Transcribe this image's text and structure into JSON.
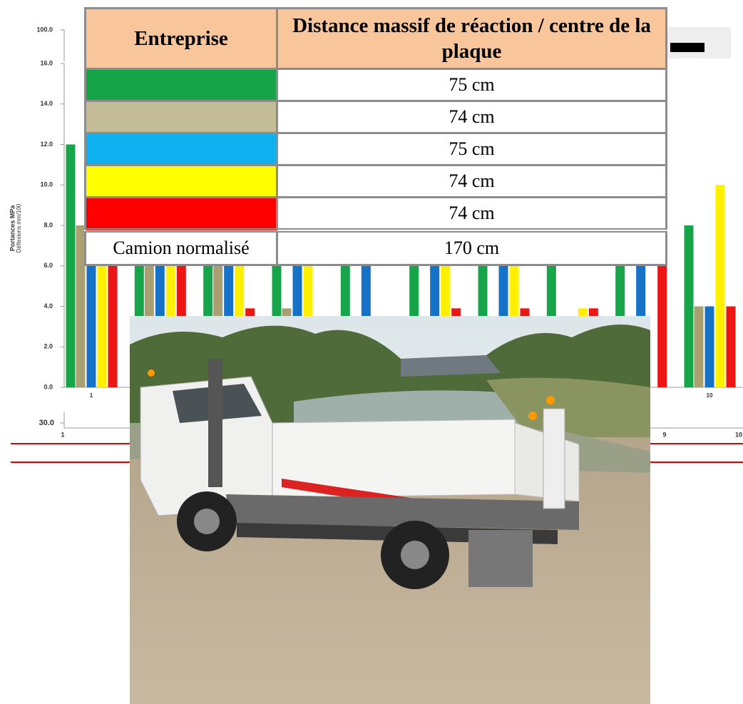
{
  "chart": {
    "type": "bar",
    "y_label": "Portances MPa",
    "y_sublabel": "Déflexions mm/100",
    "top_tick": {
      "value": 100,
      "label": "100.0"
    },
    "ylim": [
      0,
      16
    ],
    "yticks": [
      {
        "value": 0,
        "label": "0.0"
      },
      {
        "value": 2,
        "label": "2.0"
      },
      {
        "value": 4,
        "label": "4.0"
      },
      {
        "value": 6,
        "label": "6.0"
      },
      {
        "value": 8,
        "label": "8.0"
      },
      {
        "value": 10,
        "label": "10.0"
      },
      {
        "value": 12,
        "label": "12.0"
      },
      {
        "value": 14,
        "label": "14.0"
      },
      {
        "value": 16,
        "label": "16.0"
      }
    ],
    "categories": [
      "1",
      null,
      null,
      null,
      null,
      null,
      null,
      null,
      null,
      "10"
    ],
    "series": [
      {
        "color": "#17a54a",
        "values": [
          12,
          6.5,
          6.5,
          6.5,
          6.5,
          6.5,
          6.5,
          6.5,
          6.5,
          8
        ]
      },
      {
        "color": "#a99f70",
        "values": [
          8,
          6.5,
          6.5,
          3.9,
          null,
          null,
          null,
          null,
          null,
          4
        ]
      },
      {
        "color": "#1672c9",
        "values": [
          6.5,
          6.5,
          6.5,
          6.5,
          6.5,
          6.5,
          6.5,
          null,
          6.5,
          4
        ]
      },
      {
        "color": "#fff000",
        "values": [
          6.5,
          6.5,
          6.5,
          6.5,
          null,
          6.5,
          6.5,
          3.9,
          null,
          10
        ]
      },
      {
        "color": "#ee1515",
        "values": [
          6.5,
          6.5,
          3.9,
          null,
          null,
          3.9,
          3.9,
          3.9,
          6.5,
          4
        ]
      }
    ],
    "lower_axis": {
      "ytick": {
        "value": 30,
        "label": "30.0"
      },
      "xticks": [
        "1",
        "9",
        "10"
      ]
    }
  },
  "table": {
    "header": [
      "Entreprise",
      "Distance massif de réaction / centre de la plaque"
    ],
    "rows": [
      {
        "color": "#17a54a",
        "value": "75 cm"
      },
      {
        "color": "#c4bd97",
        "value": "74 cm"
      },
      {
        "color": "#0fb0f0",
        "value": "75 cm"
      },
      {
        "color": "#ffff00",
        "value": "74 cm"
      },
      {
        "color": "#ff0000",
        "value": "74 cm"
      }
    ],
    "footer": [
      "Camion normalisé",
      "170 cm"
    ]
  }
}
